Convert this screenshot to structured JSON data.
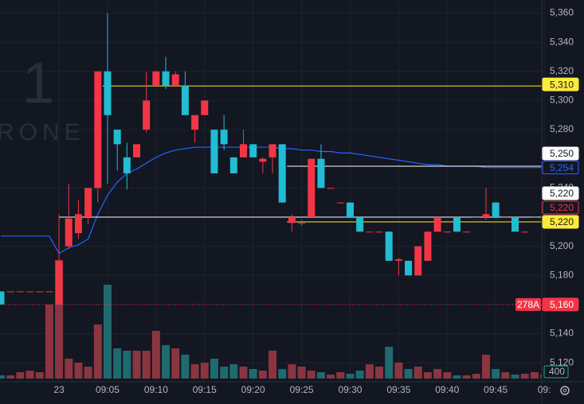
{
  "chart_data": {
    "type": "candlestick",
    "watermark": [
      "1",
      "RONE"
    ],
    "x": [
      null,
      null,
      null,
      null,
      null,
      null,
      "23",
      null,
      null,
      null,
      null,
      "09:05",
      null,
      null,
      null,
      null,
      "09:10",
      null,
      null,
      null,
      null,
      "09:15",
      null,
      null,
      null,
      null,
      "09:20",
      null,
      null,
      null,
      null,
      "09:25",
      null,
      null,
      null,
      null,
      "09:30",
      null,
      null,
      null,
      null,
      "09:35",
      null,
      null,
      null,
      null,
      "09:40",
      null,
      null,
      null,
      null,
      "09:45",
      null,
      null,
      null,
      null,
      "09:"
    ],
    "open": [
      5169,
      5169,
      5169,
      5169,
      5169,
      5169,
      5160,
      5200,
      5209,
      5220,
      5240,
      5320,
      5280,
      5261,
      5261,
      5280,
      5310,
      5320,
      5310,
      5310,
      5280,
      5290,
      5280,
      5280,
      5261,
      5261,
      5270,
      5258,
      5261,
      5270,
      5216,
      5216,
      5220,
      5260,
      5240,
      5230,
      5230,
      5220,
      5210,
      5210,
      5210,
      5190,
      5190,
      5180,
      5190,
      5210,
      5210,
      5220,
      5210,
      5220,
      5220,
      5230,
      5220,
      5220,
      5210,
      5220,
      5220
    ],
    "high": [
      5169,
      5169,
      5169,
      5169,
      5169,
      5169,
      5222,
      5243,
      5232,
      5240,
      5320,
      5360,
      5280,
      5271,
      5270,
      5320,
      5320,
      5330,
      5320,
      5320,
      5290,
      5300,
      5280,
      5290,
      5261,
      5280,
      5270,
      5261,
      5270,
      5270,
      5222,
      5218,
      5260,
      5270,
      5240,
      5230,
      5230,
      5220,
      5210,
      5210,
      5210,
      5192,
      5190,
      5200,
      5210,
      5220,
      5210,
      5220,
      5210,
      5220,
      5240,
      5230,
      5220,
      5220,
      5210,
      5220,
      5220
    ],
    "low": [
      5160,
      5169,
      5169,
      5169,
      5169,
      5169,
      5160,
      5198,
      5205,
      5215,
      5230,
      5243,
      5252,
      5239,
      5261,
      5278,
      5310,
      5308,
      5310,
      5290,
      5271,
      5290,
      5250,
      5266,
      5250,
      5261,
      5261,
      5250,
      5250,
      5230,
      5210,
      5214,
      5220,
      5240,
      5240,
      5230,
      5220,
      5210,
      5210,
      5210,
      5190,
      5180,
      5180,
      5180,
      5190,
      5210,
      5210,
      5210,
      5210,
      5220,
      5218,
      5220,
      5220,
      5210,
      5210,
      5220,
      5220
    ],
    "close": [
      5160,
      5169,
      5169,
      5169,
      5169,
      5169,
      5190,
      5219,
      5222,
      5240,
      5320,
      5290,
      5270,
      5250,
      5270,
      5300,
      5320,
      5310,
      5318,
      5290,
      5290,
      5300,
      5250,
      5270,
      5250,
      5270,
      5261,
      5260,
      5270,
      5230,
      5220,
      5216,
      5260,
      5240,
      5240,
      5230,
      5220,
      5210,
      5210,
      5210,
      5190,
      5191,
      5180,
      5200,
      5210,
      5220,
      5210,
      5210,
      5210,
      5220,
      5222,
      5220,
      5220,
      5210,
      5210,
      5220,
      5220
    ],
    "volume": [
      200,
      200,
      400,
      500,
      400,
      4650,
      7450,
      1250,
      1000,
      750,
      3400,
      5900,
      1900,
      1750,
      1750,
      1750,
      3000,
      2100,
      1900,
      1500,
      900,
      1000,
      1250,
      750,
      900,
      750,
      600,
      500,
      1750,
      600,
      900,
      750,
      500,
      400,
      250,
      400,
      300,
      500,
      900,
      750,
      2000,
      1000,
      600,
      750,
      400,
      600,
      400,
      200,
      200,
      300,
      1500,
      600,
      400,
      250,
      300,
      400,
      250
    ],
    "ma": {
      "color": "#2962ff",
      "values": [
        5207,
        5207,
        5207,
        5207,
        5207,
        5207,
        5195,
        5199,
        5201,
        5205,
        5222,
        5235,
        5244,
        5250,
        5253,
        5257,
        5261,
        5264,
        5266,
        5267,
        5268,
        5268,
        5268,
        5268,
        5268,
        5268,
        5268,
        5268,
        5268,
        5267,
        5267,
        5266,
        5266,
        5265,
        5265,
        5264,
        5264,
        5263,
        5262,
        5261,
        5260,
        5259,
        5258,
        5257,
        5256,
        5256,
        5255,
        5255,
        5255,
        5255,
        5254,
        5254,
        5254,
        5254,
        5254,
        5254,
        5254
      ]
    },
    "up_color": "#f23645",
    "down_color": "#22bcd4",
    "up_volume_color": "#8a3540",
    "down_volume_color": "#1f6a6f",
    "ylim": [
      5107,
      5369
    ],
    "yticks": [
      {
        "value": 5360,
        "label": "5,360"
      },
      {
        "value": 5340,
        "label": "5,340"
      },
      {
        "value": 5320,
        "label": "5,320"
      },
      {
        "value": 5300,
        "label": "5,300"
      },
      {
        "value": 5280,
        "label": "5,280"
      },
      {
        "value": 5240,
        "label": "5,240"
      },
      {
        "value": 5200,
        "label": "5,200"
      },
      {
        "value": 5180,
        "label": "5,180"
      },
      {
        "value": 5140,
        "label": "5,140"
      },
      {
        "value": 5120,
        "label": "5,120"
      }
    ],
    "vlim": [
      0,
      24000
    ],
    "vticks": [
      400
    ],
    "levels": [
      {
        "value": 5310,
        "color": "#ffeb3b"
      },
      {
        "value": 5250,
        "color": "#ffffff"
      },
      {
        "value": 5220,
        "color": "#ffffff"
      },
      {
        "value": 5220,
        "color": "#ffeb3b"
      },
      {
        "value": 5160,
        "color": "#f23645",
        "dashed": true
      }
    ],
    "price_tags": [
      {
        "value": 5310,
        "label": "5,310",
        "background": "#ffeb3b",
        "color": "#131722",
        "border": "#ffeb3b"
      },
      {
        "value": 5250,
        "label": "5,250",
        "background": "#ffffff",
        "color": "#131722",
        "border": "#ffffff"
      },
      {
        "value": 5254,
        "label": "5,254",
        "background": "#131722",
        "color": "#2962ff",
        "border": "#2962ff"
      },
      {
        "value": 5220,
        "label": "5,220",
        "background": "#ffffff",
        "color": "#131722",
        "border": "#ffffff"
      },
      {
        "value": 5220,
        "label": "5,220",
        "background": "#131722",
        "color": "#f23645",
        "border": "#f23645"
      },
      {
        "value": 5220,
        "label": "5,220",
        "background": "#ffeb3b",
        "color": "#131722",
        "border": "#ffeb3b"
      },
      {
        "value": 5160,
        "label": "5,160",
        "background": "#f23645",
        "color": "#ffffff",
        "border": "#f23645",
        "tag": "278A"
      }
    ],
    "grid": true
  }
}
